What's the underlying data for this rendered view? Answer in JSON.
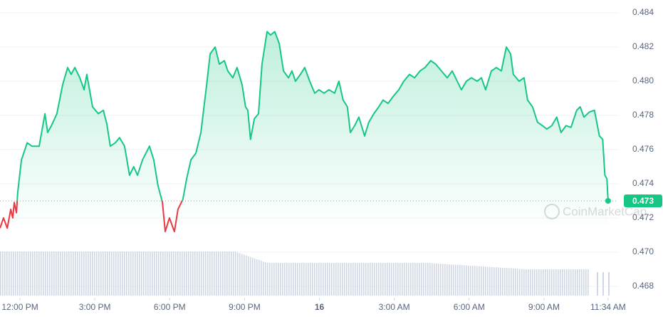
{
  "chart_data": {
    "type": "line",
    "watermark": "CoinMarketCap",
    "baseline": 0.473,
    "xlim": [
      -0.8,
      23.97
    ],
    "ylim": [
      0.46733,
      0.48475
    ],
    "xticks": [
      {
        "value": 0,
        "label": "12:00 PM"
      },
      {
        "value": 3,
        "label": "3:00 PM"
      },
      {
        "value": 6,
        "label": "6:00 PM"
      },
      {
        "value": 9,
        "label": "9:00 PM"
      },
      {
        "value": 12,
        "label": "16"
      },
      {
        "value": 15,
        "label": "3:00 AM"
      },
      {
        "value": 18,
        "label": "6:00 AM"
      },
      {
        "value": 21,
        "label": "9:00 AM"
      },
      {
        "value": 23.567,
        "label": "11:34 AM"
      }
    ],
    "yticks": [
      0.484,
      0.482,
      {
        "value": 0.48,
        "label": "0.480"
      },
      0.478,
      0.476,
      0.474,
      0.472,
      {
        "value": 0.47,
        "label": "0.470"
      },
      0.468
    ],
    "grid": true,
    "up_color": "#16c784",
    "down_color": "#ea3943",
    "x": [
      -0.8,
      -0.66,
      -0.51,
      -0.37,
      -0.29,
      -0.23,
      -0.14,
      -0.09,
      0.06,
      0.29,
      0.48,
      0.77,
      1.0,
      1.11,
      1.26,
      1.48,
      1.71,
      1.91,
      2.05,
      2.2,
      2.4,
      2.57,
      2.68,
      2.91,
      3.14,
      3.34,
      3.48,
      3.62,
      3.82,
      3.99,
      4.19,
      4.39,
      4.56,
      4.71,
      4.91,
      5.19,
      5.36,
      5.53,
      5.71,
      5.82,
      5.99,
      6.19,
      6.33,
      6.53,
      6.68,
      6.85,
      7.05,
      7.25,
      7.48,
      7.62,
      7.82,
      7.99,
      8.19,
      8.33,
      8.53,
      8.7,
      8.9,
      9.04,
      9.13,
      9.24,
      9.39,
      9.56,
      9.7,
      9.9,
      10.04,
      10.21,
      10.39,
      10.56,
      10.76,
      10.9,
      11.04,
      11.24,
      11.41,
      11.61,
      11.81,
      11.98,
      12.18,
      12.38,
      12.61,
      12.78,
      12.95,
      13.12,
      13.24,
      13.41,
      13.58,
      13.81,
      13.98,
      14.18,
      14.38,
      14.55,
      14.75,
      14.95,
      15.18,
      15.38,
      15.61,
      15.81,
      16.03,
      16.23,
      16.46,
      16.66,
      16.89,
      17.12,
      17.32,
      17.52,
      17.69,
      17.89,
      18.09,
      18.32,
      18.49,
      18.66,
      18.89,
      19.09,
      19.29,
      19.49,
      19.66,
      19.77,
      20.0,
      20.2,
      20.34,
      20.54,
      20.74,
      20.94,
      21.11,
      21.31,
      21.51,
      21.68,
      21.88,
      22.08,
      22.31,
      22.45,
      22.6,
      22.82,
      23.02,
      23.22,
      23.35,
      23.44,
      23.52,
      23.567
    ],
    "series": [
      {
        "color": "#16c784",
        "values": [
          0.4714,
          0.472,
          0.4714,
          0.4725,
          0.472,
          0.4729,
          0.4723,
          0.4735,
          0.4754,
          0.4764,
          0.4762,
          0.4762,
          0.4781,
          0.477,
          0.4774,
          0.4781,
          0.4798,
          0.4808,
          0.4804,
          0.4808,
          0.4802,
          0.4795,
          0.4804,
          0.4785,
          0.4781,
          0.4783,
          0.4775,
          0.4762,
          0.4764,
          0.4767,
          0.4762,
          0.4745,
          0.475,
          0.4745,
          0.4754,
          0.4762,
          0.4754,
          0.4739,
          0.4729,
          0.4712,
          0.472,
          0.4712,
          0.4725,
          0.4731,
          0.4743,
          0.4754,
          0.4758,
          0.477,
          0.4798,
          0.4816,
          0.482,
          0.481,
          0.4812,
          0.4806,
          0.4802,
          0.4808,
          0.4798,
          0.4785,
          0.4783,
          0.4766,
          0.4778,
          0.4781,
          0.481,
          0.4829,
          0.4827,
          0.4829,
          0.4822,
          0.4806,
          0.4802,
          0.4806,
          0.48,
          0.4804,
          0.4808,
          0.48,
          0.4793,
          0.4795,
          0.4793,
          0.4795,
          0.4793,
          0.48,
          0.4789,
          0.4785,
          0.477,
          0.4774,
          0.4779,
          0.4768,
          0.4776,
          0.4781,
          0.4785,
          0.4789,
          0.4787,
          0.4791,
          0.4795,
          0.48,
          0.4804,
          0.4802,
          0.4806,
          0.4808,
          0.4812,
          0.481,
          0.4806,
          0.4802,
          0.4806,
          0.48,
          0.4795,
          0.48,
          0.4802,
          0.48,
          0.4802,
          0.4795,
          0.4806,
          0.4808,
          0.4806,
          0.482,
          0.4816,
          0.4804,
          0.48,
          0.4802,
          0.4789,
          0.4785,
          0.4776,
          0.4774,
          0.4772,
          0.4774,
          0.4779,
          0.477,
          0.4774,
          0.4773,
          0.4783,
          0.4785,
          0.4779,
          0.4782,
          0.4783,
          0.4768,
          0.4766,
          0.4745,
          0.4743,
          0.473
        ]
      }
    ]
  }
}
